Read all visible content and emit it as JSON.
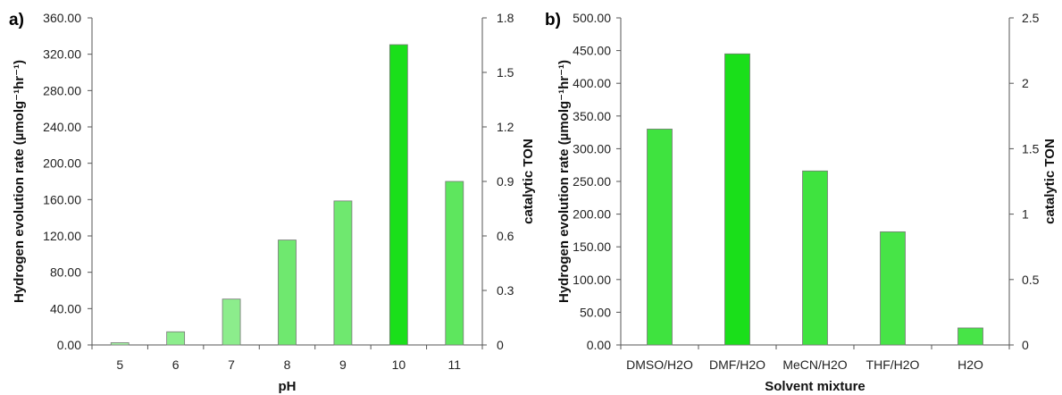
{
  "chart_data": [
    {
      "type": "bar",
      "panel_label": "a)",
      "categories": [
        "5",
        "6",
        "7",
        "8",
        "9",
        "10",
        "11"
      ],
      "values": [
        2.5,
        14.5,
        50.5,
        115.5,
        158.5,
        330.5,
        180
      ],
      "colors": [
        "#a3f0a3",
        "#8ced8c",
        "#8ced8c",
        "#6fe86f",
        "#6fe86f",
        "#1adf1a",
        "#5ee65e"
      ],
      "xlabel": "pH",
      "ylabel": "Hydrogen evolution rate (µmolg⁻¹hr⁻¹)",
      "y2label": "catalytic TON",
      "ylim": [
        0,
        360
      ],
      "yticks": [
        "0.00",
        "40.00",
        "80.00",
        "120.00",
        "160.00",
        "200.00",
        "240.00",
        "280.00",
        "320.00",
        "360.00"
      ],
      "y2lim": [
        0,
        1.8
      ],
      "y2ticks": [
        "0",
        "0.3",
        "0.6",
        "0.9",
        "1.2",
        "1.5",
        "1.8"
      ],
      "grid": false
    },
    {
      "type": "bar",
      "panel_label": "b)",
      "categories": [
        "DMSO/H2O",
        "DMF/H2O",
        "MeCN/H2O",
        "THF/H2O",
        "H2O"
      ],
      "values": [
        330,
        445,
        266,
        173,
        26
      ],
      "colors": [
        "#3fe33f",
        "#1adf1a",
        "#3fe33f",
        "#47e447",
        "#47e447"
      ],
      "xlabel": "Solvent mixture",
      "ylabel": "Hydrogen evolution rate (µmolg⁻¹hr⁻¹)",
      "y2label": "catalytic TON",
      "ylim": [
        0,
        500
      ],
      "yticks": [
        "0.00",
        "50.00",
        "100.00",
        "150.00",
        "200.00",
        "250.00",
        "300.00",
        "350.00",
        "400.00",
        "450.00",
        "500.00"
      ],
      "y2lim": [
        0,
        2.5
      ],
      "y2ticks": [
        "0",
        "0.5",
        "1",
        "1.5",
        "2",
        "2.5"
      ],
      "grid": false
    }
  ]
}
